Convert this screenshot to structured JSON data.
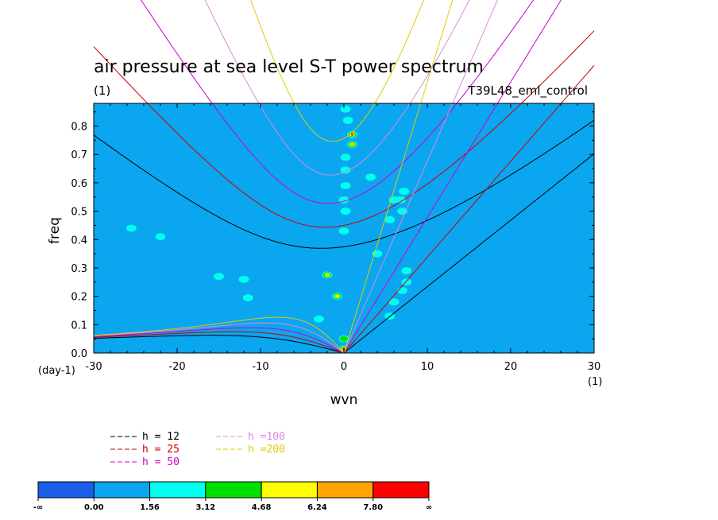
{
  "chart_data": {
    "type": "heatmap",
    "title": "air pressure at sea level S-T power spectrum",
    "subtitle_left": "(1)",
    "subtitle_right": "T39L48_eml_control",
    "xlabel": "wvn",
    "ylabel": "freq",
    "xunit": "(1)",
    "yunit": "(day-1)",
    "xlim": [
      -30,
      30
    ],
    "ylim": [
      0,
      0.88
    ],
    "xticks": [
      -30,
      -20,
      -10,
      0,
      10,
      20,
      30
    ],
    "xtick_labels": [
      "-30",
      "-20",
      "-10",
      "0",
      "10",
      "20",
      "30"
    ],
    "yticks": [
      0.0,
      0.1,
      0.2,
      0.3,
      0.4,
      0.5,
      0.6,
      0.7,
      0.8
    ],
    "ytick_labels": [
      "0.0",
      "0.1",
      "0.2",
      "0.3",
      "0.4",
      "0.5",
      "0.6",
      "0.7",
      "0.8"
    ],
    "background_level": "0.00 to 1.56",
    "colorbar": {
      "labels": [
        "-∞",
        "0.00",
        "1.56",
        "3.12",
        "4.68",
        "6.24",
        "7.80",
        "∞"
      ],
      "colors": [
        "#1a5ee8",
        "#0aa6f0",
        "#00ffee",
        "#00e000",
        "#ffff00",
        "#ffa500",
        "#ff0000"
      ]
    },
    "blobs": [
      {
        "x": 0.0,
        "y": 0.015,
        "level": 6
      },
      {
        "x": 0.0,
        "y": 0.05,
        "level": 3
      },
      {
        "x": 1.0,
        "y": 0.77,
        "level": 6
      },
      {
        "x": 1.0,
        "y": 0.735,
        "level": 5
      },
      {
        "x": -0.8,
        "y": 0.2,
        "level": 4
      },
      {
        "x": -2.0,
        "y": 0.275,
        "level": 4
      },
      {
        "x": 0.5,
        "y": 0.82,
        "level": 2
      },
      {
        "x": 0.2,
        "y": 0.86,
        "level": 2
      },
      {
        "x": 0.2,
        "y": 0.69,
        "level": 2
      },
      {
        "x": 0.2,
        "y": 0.645,
        "level": 2
      },
      {
        "x": 0.2,
        "y": 0.59,
        "level": 2
      },
      {
        "x": 0.0,
        "y": 0.54,
        "level": 2
      },
      {
        "x": 0.2,
        "y": 0.5,
        "level": 2
      },
      {
        "x": 0.0,
        "y": 0.43,
        "level": 2
      },
      {
        "x": 7.2,
        "y": 0.57,
        "level": 2
      },
      {
        "x": 6.8,
        "y": 0.54,
        "level": 2
      },
      {
        "x": 7.0,
        "y": 0.5,
        "level": 2
      },
      {
        "x": 6.0,
        "y": 0.54,
        "level": 2
      },
      {
        "x": 5.5,
        "y": 0.47,
        "level": 2
      },
      {
        "x": 7.5,
        "y": 0.25,
        "level": 2
      },
      {
        "x": 7.5,
        "y": 0.29,
        "level": 2
      },
      {
        "x": 7.0,
        "y": 0.22,
        "level": 2
      },
      {
        "x": 6.0,
        "y": 0.18,
        "level": 2
      },
      {
        "x": 5.5,
        "y": 0.13,
        "level": 2
      },
      {
        "x": -11.5,
        "y": 0.195,
        "level": 2
      },
      {
        "x": -12.0,
        "y": 0.26,
        "level": 2
      },
      {
        "x": -15.0,
        "y": 0.27,
        "level": 2
      },
      {
        "x": -22.0,
        "y": 0.41,
        "level": 2
      },
      {
        "x": -25.5,
        "y": 0.44,
        "level": 2
      },
      {
        "x": -3.0,
        "y": 0.12,
        "level": 2
      },
      {
        "x": 4.0,
        "y": 0.35,
        "level": 2
      },
      {
        "x": 3.2,
        "y": 0.62,
        "level": 2
      }
    ],
    "series": [
      {
        "name": "h = 12",
        "color": "#000000",
        "equivalent_depth": 12
      },
      {
        "name": "h = 25",
        "color": "#cc0000",
        "equivalent_depth": 25
      },
      {
        "name": "h = 50",
        "color": "#cc00cc",
        "equivalent_depth": 50
      },
      {
        "name": "h =100",
        "color": "#dd88dd",
        "equivalent_depth": 100
      },
      {
        "name": "h =200",
        "color": "#ddcc00",
        "equivalent_depth": 200
      }
    ]
  }
}
